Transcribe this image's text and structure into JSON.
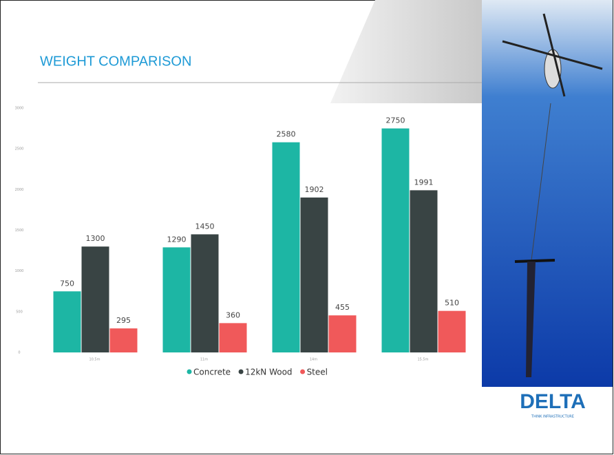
{
  "chart_data": {
    "type": "bar",
    "title": "WEIGHT COMPARISON",
    "categories": [
      "10.5m",
      "11m",
      "14m",
      "15.5m"
    ],
    "series": [
      {
        "name": "Concrete",
        "color": "#1db6a4",
        "values": [
          750,
          1290,
          2580,
          2750
        ]
      },
      {
        "name": "12kN Wood",
        "color": "#394444",
        "values": [
          1300,
          1450,
          1902,
          1991
        ]
      },
      {
        "name": "Steel",
        "color": "#f0595a",
        "values": [
          295,
          360,
          455,
          510
        ]
      }
    ],
    "ylim": [
      0,
      3000
    ],
    "yticks": [
      0,
      500,
      1000,
      1500,
      2000,
      2500,
      3000
    ],
    "grid": false,
    "legend": "bottom"
  },
  "logo": {
    "name": "DELTA",
    "tagline": "THINK INFRASTRUCTURE"
  }
}
